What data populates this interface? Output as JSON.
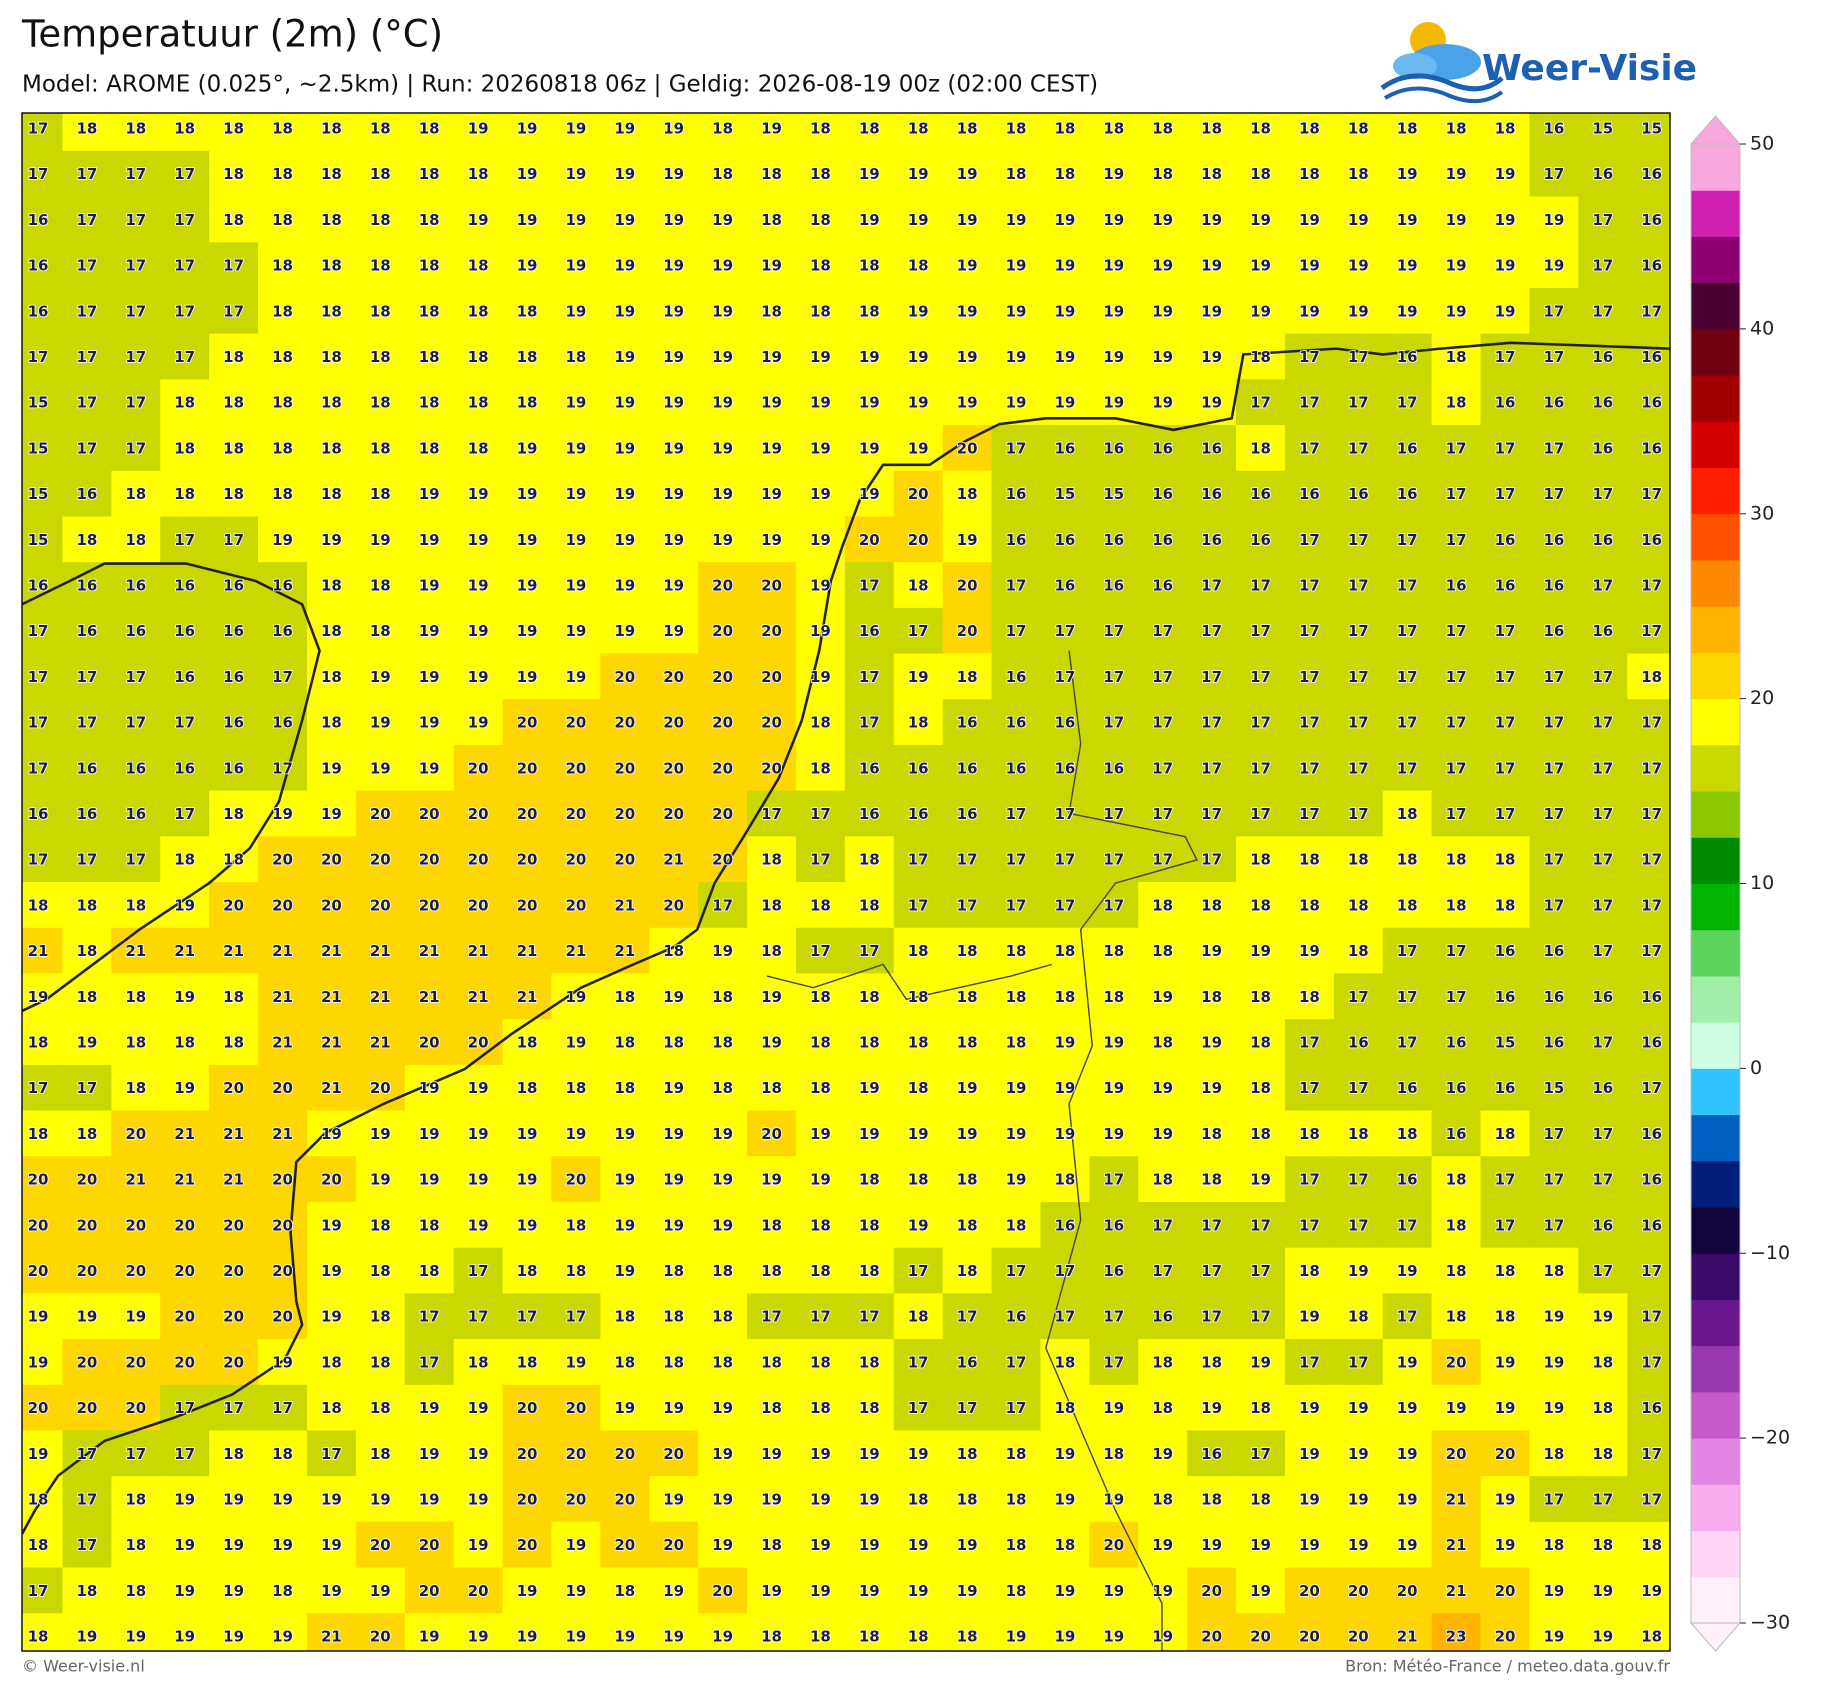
{
  "header": {
    "title": "Temperatuur (2m) (°C)",
    "subtitle": "Model: AROME (0.025°, ~2.5km)  |  Run: 20260818 06z  |  Geldig: 2026-08-19 00z (02:00 CEST)"
  },
  "logo": {
    "text": "Weer-Visie"
  },
  "footer": {
    "credit": "© Weer-visie.nl",
    "source": "Bron: Météo-France / meteo.data.gouv.fr"
  },
  "colorbar": {
    "range": [
      -30,
      50
    ],
    "ticks": [
      50,
      40,
      30,
      20,
      10,
      0,
      {
        "value": -10,
        "label": "−10"
      },
      {
        "value": -20,
        "label": "−20"
      },
      {
        "value": -30,
        "label": "−30"
      }
    ],
    "colors": [
      "#fff0fb",
      "#ffd6f6",
      "#f8aeee",
      "#e383e2",
      "#c65acc",
      "#9a38b0",
      "#6a168f",
      "#3a0a6a",
      "#12053e",
      "#001f78",
      "#0060c0",
      "#30c4ff",
      "#ccffe4",
      "#a0eea8",
      "#5cd45c",
      "#00b400",
      "#008a00",
      "#8cc800",
      "#c8d800",
      "#ffff00",
      "#ffd700",
      "#ffb400",
      "#ff8800",
      "#ff5000",
      "#ff1e00",
      "#d40000",
      "#a00000",
      "#700010",
      "#4a0030",
      "#8a0070",
      "#d020b0",
      "#f8a8dc"
    ]
  },
  "map": {
    "grid": [
      [
        17,
        18,
        18,
        18,
        18,
        18,
        18,
        18,
        18,
        19,
        19,
        19,
        19,
        19,
        18,
        19,
        18,
        18,
        18,
        18,
        18,
        18,
        18,
        18,
        18,
        18,
        18,
        18,
        18,
        18,
        18,
        16,
        15,
        15
      ],
      [
        17,
        17,
        17,
        17,
        18,
        18,
        18,
        18,
        18,
        18,
        19,
        19,
        19,
        19,
        18,
        18,
        18,
        19,
        19,
        19,
        18,
        18,
        19,
        18,
        18,
        18,
        18,
        18,
        19,
        19,
        19,
        17,
        16,
        16
      ],
      [
        16,
        17,
        17,
        17,
        18,
        18,
        18,
        18,
        18,
        19,
        19,
        19,
        19,
        19,
        19,
        18,
        18,
        19,
        19,
        19,
        19,
        19,
        19,
        19,
        19,
        19,
        19,
        19,
        19,
        19,
        19,
        19,
        17,
        16
      ],
      [
        16,
        17,
        17,
        17,
        17,
        18,
        18,
        18,
        18,
        18,
        19,
        19,
        19,
        19,
        19,
        19,
        18,
        18,
        18,
        19,
        19,
        19,
        19,
        19,
        19,
        19,
        19,
        19,
        19,
        19,
        19,
        19,
        17,
        16
      ],
      [
        16,
        17,
        17,
        17,
        17,
        18,
        18,
        18,
        18,
        18,
        18,
        19,
        19,
        19,
        19,
        18,
        18,
        18,
        19,
        19,
        19,
        19,
        19,
        19,
        19,
        19,
        19,
        19,
        19,
        19,
        19,
        17,
        17,
        17
      ],
      [
        17,
        17,
        17,
        17,
        18,
        18,
        18,
        18,
        18,
        18,
        18,
        18,
        19,
        19,
        19,
        19,
        19,
        19,
        19,
        19,
        19,
        19,
        19,
        19,
        19,
        18,
        17,
        17,
        16,
        18,
        17,
        17,
        16,
        16
      ],
      [
        15,
        17,
        17,
        18,
        18,
        18,
        18,
        18,
        18,
        18,
        18,
        19,
        19,
        19,
        19,
        19,
        19,
        19,
        19,
        19,
        19,
        19,
        19,
        19,
        19,
        17,
        17,
        17,
        17,
        18,
        16,
        16,
        16,
        16
      ],
      [
        15,
        17,
        17,
        18,
        18,
        18,
        18,
        18,
        18,
        18,
        19,
        19,
        19,
        19,
        19,
        19,
        19,
        19,
        19,
        20,
        17,
        16,
        16,
        16,
        16,
        18,
        17,
        17,
        16,
        17,
        17,
        17,
        16,
        16
      ],
      [
        15,
        16,
        18,
        18,
        18,
        18,
        18,
        18,
        19,
        19,
        19,
        19,
        19,
        19,
        19,
        19,
        19,
        19,
        20,
        18,
        16,
        15,
        15,
        16,
        16,
        16,
        16,
        16,
        16,
        17,
        17,
        17,
        17,
        17
      ],
      [
        15,
        18,
        18,
        17,
        17,
        19,
        19,
        19,
        19,
        19,
        19,
        19,
        19,
        19,
        19,
        19,
        19,
        20,
        20,
        19,
        16,
        16,
        16,
        16,
        16,
        16,
        17,
        17,
        17,
        17,
        16,
        16,
        16,
        16
      ],
      [
        16,
        16,
        16,
        16,
        16,
        16,
        18,
        18,
        19,
        19,
        19,
        19,
        19,
        19,
        20,
        20,
        19,
        17,
        18,
        20,
        17,
        16,
        16,
        16,
        17,
        17,
        17,
        17,
        17,
        16,
        16,
        16,
        17,
        17
      ],
      [
        17,
        16,
        16,
        16,
        16,
        16,
        18,
        18,
        19,
        19,
        19,
        19,
        19,
        19,
        20,
        20,
        19,
        16,
        17,
        20,
        17,
        17,
        17,
        17,
        17,
        17,
        17,
        17,
        17,
        17,
        17,
        16,
        16,
        17
      ],
      [
        17,
        17,
        17,
        16,
        16,
        17,
        18,
        19,
        19,
        19,
        19,
        19,
        20,
        20,
        20,
        20,
        19,
        17,
        19,
        18,
        16,
        17,
        17,
        17,
        17,
        17,
        17,
        17,
        17,
        17,
        17,
        17,
        17,
        18
      ],
      [
        17,
        17,
        17,
        17,
        16,
        16,
        18,
        19,
        19,
        19,
        20,
        20,
        20,
        20,
        20,
        20,
        18,
        17,
        18,
        16,
        16,
        16,
        17,
        17,
        17,
        17,
        17,
        17,
        17,
        17,
        17,
        17,
        17,
        17
      ],
      [
        17,
        16,
        16,
        16,
        16,
        17,
        19,
        19,
        19,
        20,
        20,
        20,
        20,
        20,
        20,
        20,
        18,
        16,
        16,
        16,
        16,
        16,
        16,
        17,
        17,
        17,
        17,
        17,
        17,
        17,
        17,
        17,
        17,
        17
      ],
      [
        16,
        16,
        16,
        17,
        18,
        19,
        19,
        20,
        20,
        20,
        20,
        20,
        20,
        20,
        20,
        17,
        17,
        16,
        16,
        16,
        17,
        17,
        17,
        17,
        17,
        17,
        17,
        17,
        18,
        17,
        17,
        17,
        17,
        17
      ],
      [
        17,
        17,
        17,
        18,
        18,
        20,
        20,
        20,
        20,
        20,
        20,
        20,
        20,
        21,
        20,
        18,
        17,
        18,
        17,
        17,
        17,
        17,
        17,
        17,
        17,
        18,
        18,
        18,
        18,
        18,
        18,
        17,
        17,
        17
      ],
      [
        18,
        18,
        18,
        19,
        20,
        20,
        20,
        20,
        20,
        20,
        20,
        20,
        21,
        20,
        17,
        18,
        18,
        18,
        17,
        17,
        17,
        17,
        17,
        18,
        18,
        18,
        18,
        18,
        18,
        18,
        18,
        17,
        17,
        17
      ],
      [
        21,
        18,
        21,
        21,
        21,
        21,
        21,
        21,
        21,
        21,
        21,
        21,
        21,
        18,
        19,
        18,
        17,
        17,
        18,
        18,
        18,
        18,
        18,
        18,
        19,
        19,
        19,
        18,
        17,
        17,
        16,
        16,
        17,
        17
      ],
      [
        19,
        18,
        18,
        19,
        18,
        21,
        21,
        21,
        21,
        21,
        21,
        19,
        18,
        19,
        18,
        19,
        18,
        18,
        18,
        18,
        18,
        18,
        18,
        19,
        18,
        18,
        18,
        17,
        17,
        17,
        16,
        16,
        16,
        16
      ],
      [
        18,
        19,
        18,
        18,
        18,
        21,
        21,
        21,
        20,
        20,
        18,
        19,
        18,
        18,
        18,
        19,
        18,
        18,
        18,
        18,
        18,
        19,
        19,
        18,
        19,
        18,
        17,
        16,
        17,
        16,
        15,
        16,
        17,
        16
      ],
      [
        17,
        17,
        18,
        19,
        20,
        20,
        21,
        20,
        19,
        19,
        18,
        18,
        18,
        19,
        18,
        18,
        18,
        19,
        18,
        19,
        19,
        19,
        19,
        19,
        19,
        18,
        17,
        17,
        16,
        16,
        16,
        15,
        16,
        17
      ],
      [
        18,
        18,
        20,
        21,
        21,
        21,
        19,
        19,
        19,
        19,
        19,
        19,
        19,
        19,
        19,
        20,
        19,
        19,
        19,
        19,
        19,
        19,
        19,
        19,
        18,
        18,
        18,
        18,
        18,
        16,
        18,
        17,
        17,
        16
      ],
      [
        20,
        20,
        21,
        21,
        21,
        20,
        20,
        19,
        19,
        19,
        19,
        20,
        19,
        19,
        19,
        19,
        19,
        18,
        18,
        18,
        19,
        18,
        17,
        18,
        18,
        19,
        17,
        17,
        16,
        18,
        17,
        17,
        17,
        16
      ],
      [
        20,
        20,
        20,
        20,
        20,
        20,
        19,
        18,
        18,
        19,
        19,
        18,
        19,
        19,
        19,
        18,
        18,
        18,
        19,
        18,
        18,
        16,
        16,
        17,
        17,
        17,
        17,
        17,
        17,
        18,
        17,
        17,
        16,
        16
      ],
      [
        20,
        20,
        20,
        20,
        20,
        20,
        19,
        18,
        18,
        17,
        18,
        18,
        19,
        18,
        18,
        18,
        18,
        18,
        17,
        18,
        17,
        17,
        16,
        17,
        17,
        17,
        18,
        19,
        19,
        18,
        18,
        18,
        17,
        17
      ],
      [
        19,
        19,
        19,
        20,
        20,
        20,
        19,
        18,
        17,
        17,
        17,
        17,
        18,
        18,
        18,
        17,
        17,
        17,
        18,
        17,
        16,
        17,
        17,
        16,
        17,
        17,
        19,
        18,
        17,
        18,
        18,
        19,
        19,
        17
      ],
      [
        19,
        20,
        20,
        20,
        20,
        19,
        18,
        18,
        17,
        18,
        18,
        19,
        18,
        18,
        18,
        18,
        18,
        18,
        17,
        16,
        17,
        18,
        17,
        18,
        18,
        19,
        17,
        17,
        19,
        20,
        19,
        19,
        18,
        17
      ],
      [
        20,
        20,
        20,
        17,
        17,
        17,
        18,
        18,
        19,
        19,
        20,
        20,
        19,
        19,
        19,
        18,
        18,
        18,
        17,
        17,
        17,
        18,
        19,
        18,
        19,
        18,
        19,
        19,
        19,
        19,
        19,
        19,
        18,
        16
      ],
      [
        19,
        17,
        17,
        17,
        18,
        18,
        17,
        18,
        19,
        19,
        20,
        20,
        20,
        20,
        19,
        19,
        19,
        19,
        19,
        18,
        18,
        19,
        18,
        19,
        16,
        17,
        19,
        19,
        19,
        20,
        20,
        18,
        18,
        17
      ],
      [
        18,
        17,
        18,
        19,
        19,
        19,
        19,
        19,
        19,
        19,
        20,
        20,
        20,
        19,
        19,
        19,
        19,
        19,
        18,
        18,
        18,
        19,
        19,
        18,
        18,
        18,
        19,
        19,
        19,
        21,
        19,
        17,
        17,
        17
      ],
      [
        18,
        17,
        18,
        19,
        19,
        19,
        19,
        20,
        20,
        19,
        20,
        19,
        20,
        20,
        19,
        18,
        19,
        19,
        19,
        19,
        18,
        18,
        20,
        19,
        19,
        19,
        19,
        19,
        19,
        21,
        19,
        18,
        18,
        18
      ],
      [
        17,
        18,
        18,
        19,
        19,
        18,
        19,
        19,
        20,
        20,
        19,
        19,
        18,
        19,
        20,
        19,
        19,
        19,
        19,
        19,
        18,
        19,
        19,
        19,
        20,
        19,
        20,
        20,
        20,
        21,
        20,
        19,
        19,
        19
      ],
      [
        18,
        19,
        19,
        19,
        19,
        19,
        21,
        20,
        19,
        19,
        19,
        19,
        19,
        19,
        19,
        18,
        18,
        18,
        18,
        18,
        19,
        19,
        19,
        19,
        20,
        20,
        20,
        20,
        21,
        23,
        20,
        19,
        19,
        18
      ]
    ]
  }
}
